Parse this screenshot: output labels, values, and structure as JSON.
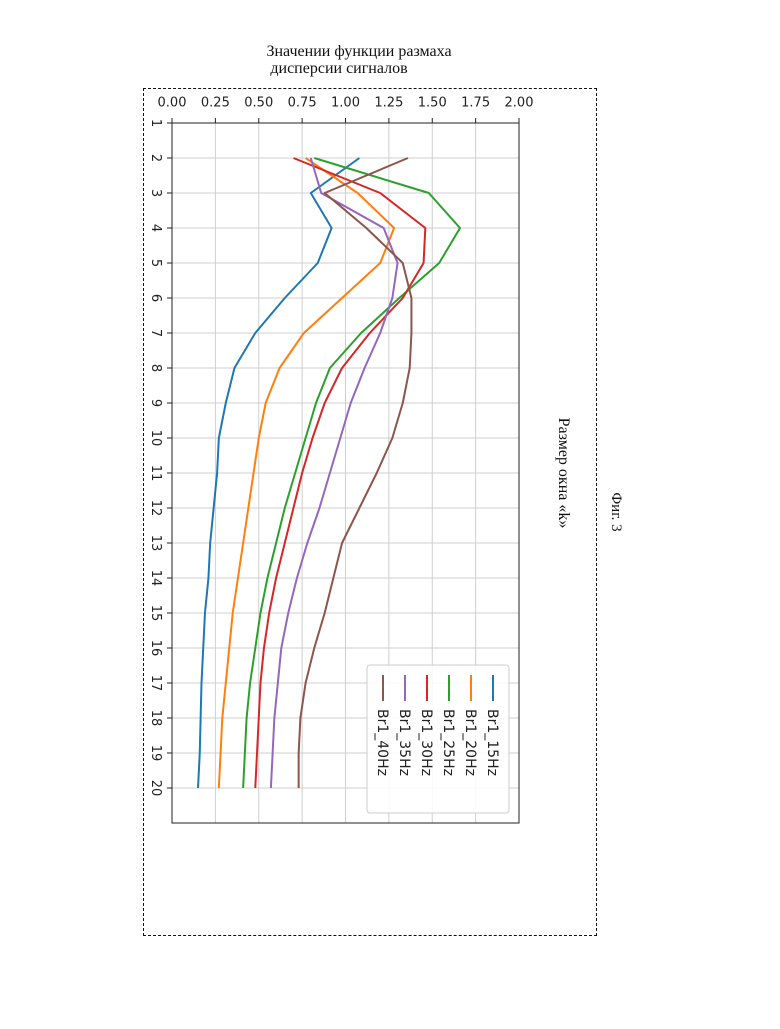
{
  "figure": {
    "caption": "Фиг. 3"
  },
  "chart_data": {
    "type": "line",
    "xlabel": "Размер окна «k»",
    "ylabel_line1": "Значении функции размаха",
    "ylabel_line2": "дисперсии сигналов",
    "x_ticks": [
      "1",
      "2",
      "3",
      "4",
      "5",
      "6",
      "7",
      "8",
      "9",
      "10",
      "11",
      "12",
      "13",
      "14",
      "15",
      "16",
      "17",
      "18",
      "19",
      "20"
    ],
    "y_ticks": [
      "0.00",
      "0.25",
      "0.50",
      "0.75",
      "1.00",
      "1.25",
      "1.50",
      "1.75",
      "2.00"
    ],
    "xlim": [
      1,
      21
    ],
    "ylim": [
      0,
      2
    ],
    "grid": true,
    "legend_position": "top-right",
    "x": [
      2,
      3,
      4,
      5,
      6,
      7,
      8,
      9,
      10,
      11,
      12,
      13,
      14,
      15,
      16,
      17,
      18,
      19,
      20
    ],
    "series": [
      {
        "name": "Br1_15Hz",
        "color": "#1f77b4",
        "values": [
          1.08,
          0.8,
          0.92,
          0.84,
          0.65,
          0.48,
          0.36,
          0.31,
          0.27,
          0.26,
          0.24,
          0.22,
          0.21,
          0.19,
          0.18,
          0.17,
          0.165,
          0.16,
          0.15
        ]
      },
      {
        "name": "Br1_20Hz",
        "color": "#ff7f0e",
        "values": [
          0.77,
          1.07,
          1.28,
          1.2,
          0.98,
          0.76,
          0.62,
          0.54,
          0.5,
          0.47,
          0.44,
          0.41,
          0.38,
          0.35,
          0.33,
          0.31,
          0.29,
          0.28,
          0.27
        ]
      },
      {
        "name": "Br1_25Hz",
        "color": "#2ca02c",
        "values": [
          0.82,
          1.48,
          1.66,
          1.54,
          1.31,
          1.09,
          0.91,
          0.83,
          0.77,
          0.71,
          0.65,
          0.6,
          0.55,
          0.51,
          0.48,
          0.45,
          0.43,
          0.42,
          0.41
        ]
      },
      {
        "name": "Br1_30Hz",
        "color": "#d62728",
        "values": [
          0.7,
          1.2,
          1.46,
          1.45,
          1.33,
          1.14,
          0.98,
          0.88,
          0.81,
          0.75,
          0.7,
          0.65,
          0.6,
          0.56,
          0.53,
          0.51,
          0.5,
          0.49,
          0.48
        ]
      },
      {
        "name": "Br1_35Hz",
        "color": "#9467bd",
        "values": [
          0.8,
          0.86,
          1.22,
          1.3,
          1.27,
          1.2,
          1.11,
          1.03,
          0.97,
          0.91,
          0.85,
          0.78,
          0.72,
          0.67,
          0.63,
          0.61,
          0.59,
          0.58,
          0.57
        ]
      },
      {
        "name": "Br1_40Hz",
        "color": "#8c564b",
        "values": [
          1.36,
          0.88,
          1.12,
          1.33,
          1.38,
          1.38,
          1.37,
          1.33,
          1.27,
          1.18,
          1.08,
          0.98,
          0.93,
          0.88,
          0.82,
          0.77,
          0.74,
          0.73,
          0.73
        ]
      }
    ]
  }
}
